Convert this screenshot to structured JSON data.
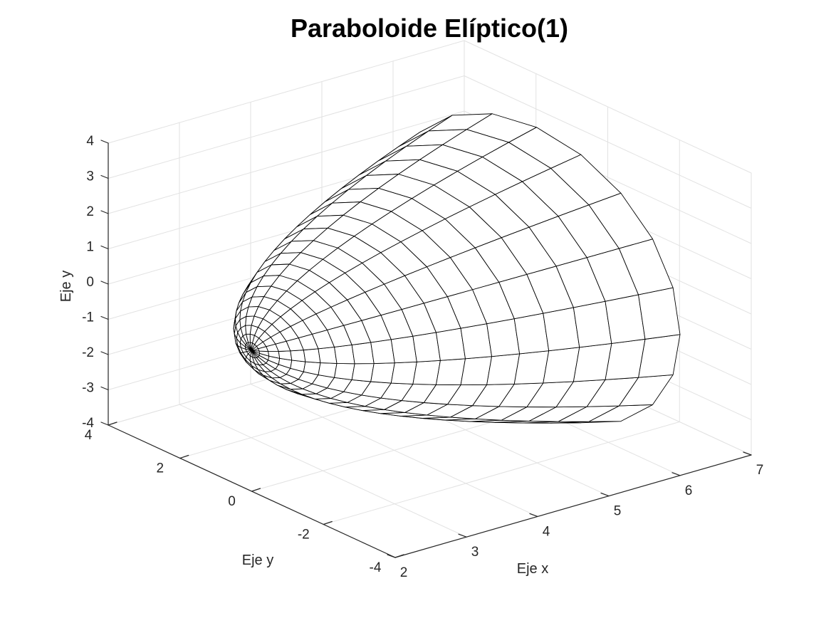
{
  "chart_data": {
    "type": "surface3d",
    "title": "Paraboloide Elíptico(1)",
    "xlabel": "Eje x",
    "ylabel": "Eje y",
    "zlabel": "Eje y",
    "xlim": [
      2,
      7
    ],
    "ylim": [
      -4,
      4
    ],
    "zlim": [
      -4,
      4
    ],
    "xticks": [
      2,
      3,
      4,
      5,
      6,
      7
    ],
    "yticks": [
      -4,
      -2,
      0,
      2,
      4
    ],
    "zticks": [
      -4,
      -3,
      -2,
      -1,
      0,
      1,
      2,
      3,
      4
    ],
    "grid": true,
    "surface": {
      "equation": "x = 2 + y^2/4 + z^2/4",
      "x_range": [
        2,
        6
      ],
      "radial_samples": 21,
      "angular_samples": 21,
      "face_color": "#ffffff",
      "edge_color": "#000000"
    },
    "colors": {
      "grid": "#e2e2e2",
      "axis": "#262626",
      "mesh": "#000000"
    }
  }
}
